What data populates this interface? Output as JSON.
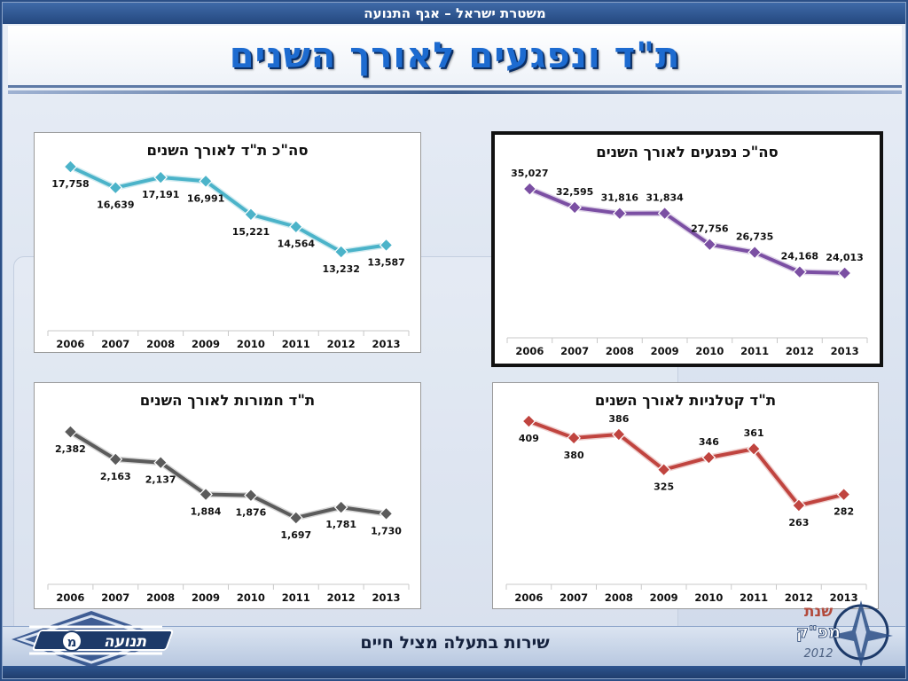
{
  "header": {
    "org_line": "משטרת ישראל – אגף התנועה",
    "title": "ת\"ד ונפגעים לאורך השנים"
  },
  "footer": {
    "slogan": "שירות בתעלה מציל חיים",
    "left_logo_text": "תנועה",
    "left_logo_letter": "מ",
    "right_logo_line1": "שנת",
    "right_logo_line2": "מפ\"ק",
    "right_logo_year": "2012"
  },
  "colors": {
    "teal": "#4bb3c9",
    "purple": "#7b4fa3",
    "gray": "#5b5b5b",
    "red": "#c0443f",
    "brand_blue": "#1d6bd0"
  },
  "chart_data": [
    {
      "type": "line",
      "title": "סה\"כ ת\"ד לאורך השנים",
      "categories": [
        "2006",
        "2007",
        "2008",
        "2009",
        "2010",
        "2011",
        "2012",
        "2013"
      ],
      "values": [
        17758,
        16639,
        17191,
        16991,
        15221,
        14564,
        13232,
        13587
      ],
      "labels": [
        "17,758",
        "16,639",
        "17,191",
        "16,991",
        "15,221",
        "14,564",
        "13,232",
        "13,587"
      ],
      "color": "#4bb3c9",
      "label_position": "below",
      "ylim": [
        0,
        20000
      ],
      "grid": false,
      "legend": "none"
    },
    {
      "type": "line",
      "title": "סה\"כ נפגעים לאורך השנים",
      "categories": [
        "2006",
        "2007",
        "2008",
        "2009",
        "2010",
        "2011",
        "2012",
        "2013"
      ],
      "values": [
        35027,
        32595,
        31816,
        31834,
        27756,
        26735,
        24168,
        24013
      ],
      "labels": [
        "35,027",
        "32,595",
        "31,816",
        "31,834",
        "27,756",
        "26,735",
        "24,168",
        "24,013"
      ],
      "color": "#7b4fa3",
      "label_position": "above",
      "ylim": [
        0,
        40000
      ],
      "grid": false,
      "legend": "none"
    },
    {
      "type": "line",
      "title": "ת\"ד חמורות לאורך השנים",
      "categories": [
        "2006",
        "2007",
        "2008",
        "2009",
        "2010",
        "2011",
        "2012",
        "2013"
      ],
      "values": [
        2382,
        2163,
        2137,
        1884,
        1876,
        1697,
        1781,
        1730
      ],
      "labels": [
        "2,382",
        "2,163",
        "2,137",
        "1,884",
        "1,876",
        "1,697",
        "1,781",
        "1,730"
      ],
      "color": "#5b5b5b",
      "label_position": "below",
      "ylim": [
        0,
        3000
      ],
      "grid": false,
      "legend": "none"
    },
    {
      "type": "line",
      "title": "ת\"ד קטלניות לאורך השנים",
      "categories": [
        "2006",
        "2007",
        "2008",
        "2009",
        "2010",
        "2011",
        "2012",
        "2013"
      ],
      "values": [
        409,
        380,
        386,
        325,
        346,
        361,
        263,
        282
      ],
      "labels": [
        "409",
        "380",
        "386",
        "325",
        "346",
        "361",
        "263",
        "282"
      ],
      "color": "#c0443f",
      "label_position": "mixed",
      "ylim": [
        0,
        500
      ],
      "grid": false,
      "legend": "none"
    }
  ]
}
